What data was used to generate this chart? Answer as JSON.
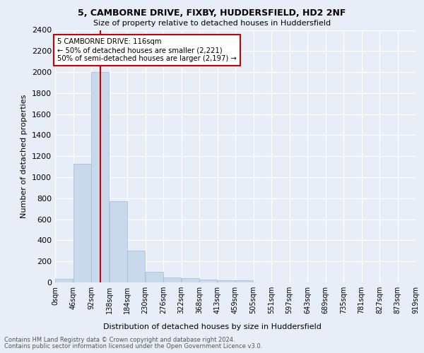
{
  "title1": "5, CAMBORNE DRIVE, FIXBY, HUDDERSFIELD, HD2 2NF",
  "title2": "Size of property relative to detached houses in Huddersfield",
  "xlabel": "Distribution of detached houses by size in Huddersfield",
  "ylabel": "Number of detached properties",
  "bar_color": "#c9d9ec",
  "bar_edge_color": "#a0b8d8",
  "bin_labels": [
    "0sqm",
    "46sqm",
    "92sqm",
    "138sqm",
    "184sqm",
    "230sqm",
    "276sqm",
    "322sqm",
    "368sqm",
    "413sqm",
    "459sqm",
    "505sqm",
    "551sqm",
    "597sqm",
    "643sqm",
    "689sqm",
    "735sqm",
    "781sqm",
    "827sqm",
    "873sqm",
    "919sqm"
  ],
  "bar_values": [
    35,
    1130,
    2000,
    775,
    300,
    100,
    45,
    40,
    30,
    20,
    20,
    0,
    0,
    0,
    0,
    0,
    0,
    0,
    0,
    0
  ],
  "ylim": [
    0,
    2400
  ],
  "yticks": [
    0,
    200,
    400,
    600,
    800,
    1000,
    1200,
    1400,
    1600,
    1800,
    2000,
    2200,
    2400
  ],
  "red_line_x": 116,
  "bin_width": 46,
  "annotation_text": "5 CAMBORNE DRIVE: 116sqm\n← 50% of detached houses are smaller (2,221)\n50% of semi-detached houses are larger (2,197) →",
  "annotation_box_color": "#ffffff",
  "annotation_box_edge": "#cc0000",
  "red_line_color": "#cc0000",
  "footer1": "Contains HM Land Registry data © Crown copyright and database right 2024.",
  "footer2": "Contains public sector information licensed under the Open Government Licence v3.0.",
  "background_color": "#e8eef7",
  "grid_color": "#ffffff"
}
